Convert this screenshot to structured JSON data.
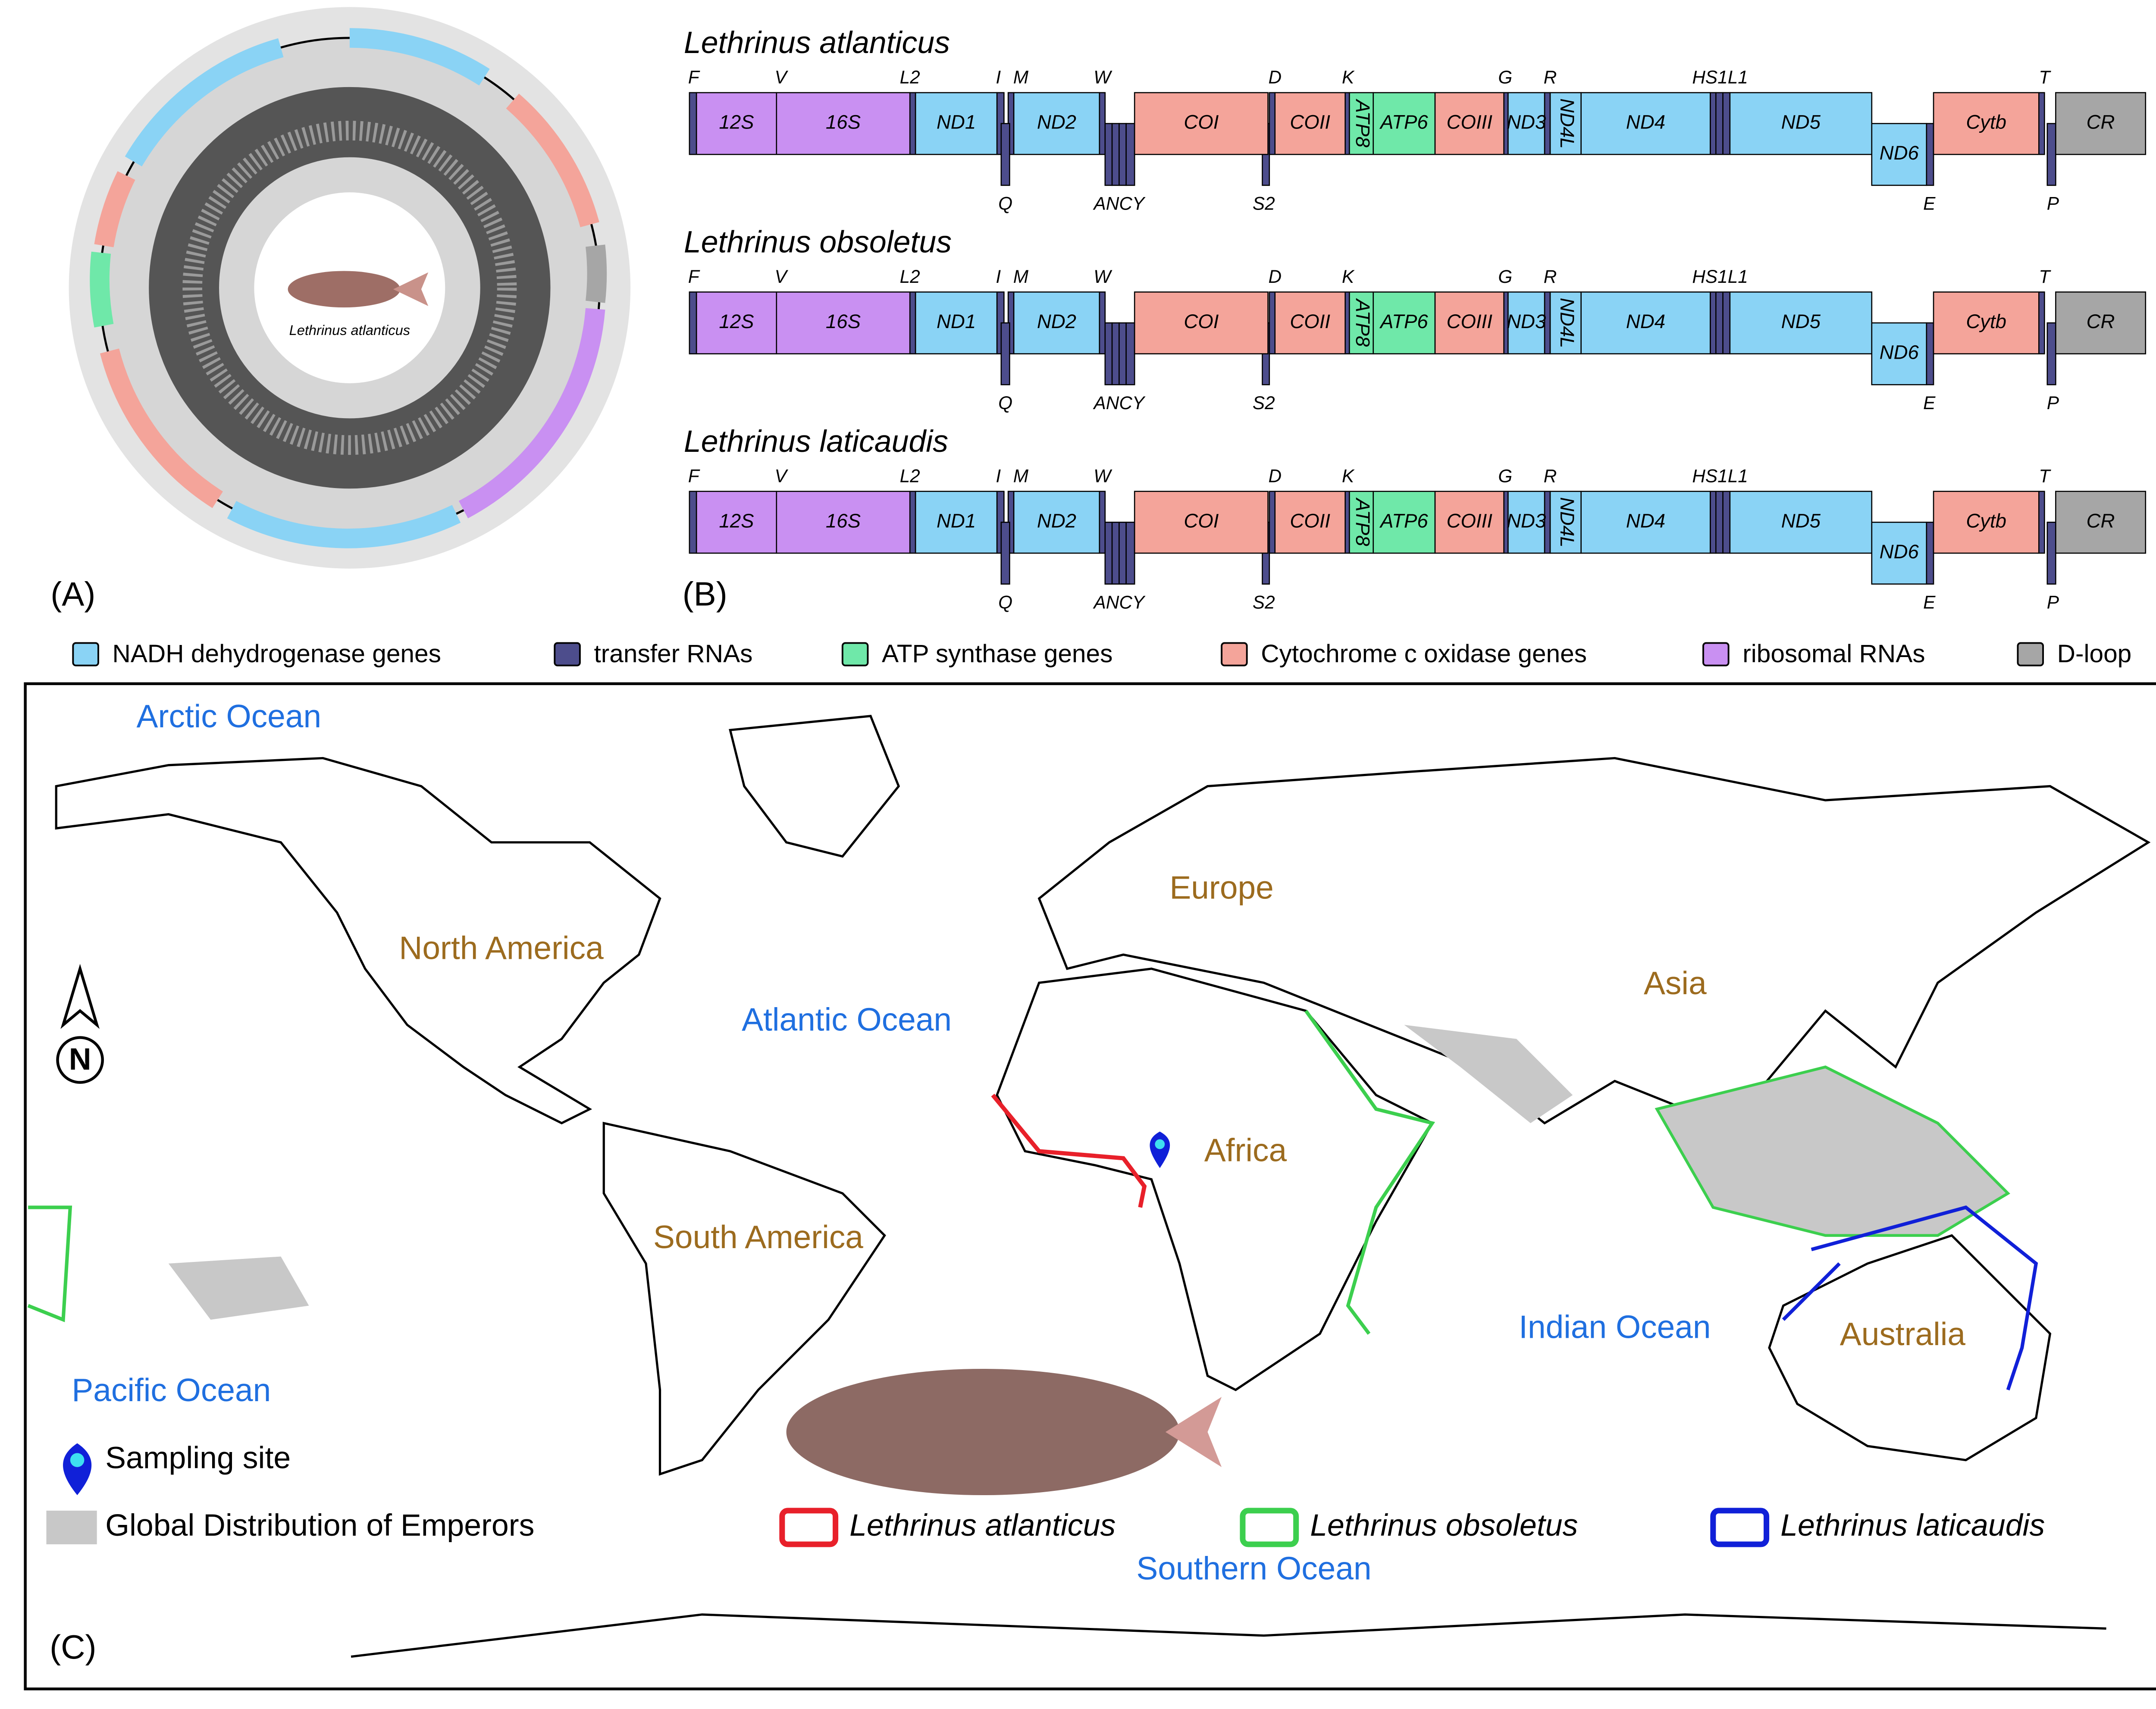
{
  "panel_labels": [
    "(A)",
    "(B)",
    "(C)"
  ],
  "genome_circle": {
    "center_label": "Lethrinus atlanticus"
  },
  "gene_maps": [
    {
      "species": "Lethrinus atlanticus",
      "genes": [
        {
          "label": "12S",
          "color": "#c990f2"
        },
        {
          "label": "16S",
          "color": "#c990f2"
        },
        {
          "label": "ND1",
          "color": "#8ad3f5"
        },
        {
          "label": "ND2",
          "color": "#8ad3f5"
        },
        {
          "label": "COI",
          "color": "#f4a49a"
        },
        {
          "label": "COII",
          "color": "#f4a49a"
        },
        {
          "label": "ATP8",
          "color": "#6fe8a9"
        },
        {
          "label": "ATP6",
          "color": "#6fe8a9"
        },
        {
          "label": "COIII",
          "color": "#f4a49a"
        },
        {
          "label": "ND3",
          "color": "#8ad3f5"
        },
        {
          "label": "ND4L",
          "color": "#8ad3f5"
        },
        {
          "label": "ND4",
          "color": "#8ad3f5"
        },
        {
          "label": "ND5",
          "color": "#8ad3f5"
        },
        {
          "label": "ND6",
          "color": "#8ad3f5"
        },
        {
          "label": "Cytb",
          "color": "#f4a49a"
        },
        {
          "label": "CR",
          "color": "#a6a6a6"
        }
      ],
      "trna_top": [
        "F",
        "V",
        "L2",
        "I",
        "M",
        "W",
        "D",
        "K",
        "G",
        "R",
        "HS1L1",
        "T"
      ],
      "trna_bottom": [
        "Q",
        "ANCY",
        "S2",
        "E",
        "P"
      ]
    },
    {
      "species": "Lethrinus obsoletus",
      "genes": [
        {
          "label": "12S",
          "color": "#c990f2"
        },
        {
          "label": "16S",
          "color": "#c990f2"
        },
        {
          "label": "ND1",
          "color": "#8ad3f5"
        },
        {
          "label": "ND2",
          "color": "#8ad3f5"
        },
        {
          "label": "COI",
          "color": "#f4a49a"
        },
        {
          "label": "COII",
          "color": "#f4a49a"
        },
        {
          "label": "ATP8",
          "color": "#6fe8a9"
        },
        {
          "label": "ATP6",
          "color": "#6fe8a9"
        },
        {
          "label": "COIII",
          "color": "#f4a49a"
        },
        {
          "label": "ND3",
          "color": "#8ad3f5"
        },
        {
          "label": "ND4L",
          "color": "#8ad3f5"
        },
        {
          "label": "ND4",
          "color": "#8ad3f5"
        },
        {
          "label": "ND5",
          "color": "#8ad3f5"
        },
        {
          "label": "ND6",
          "color": "#8ad3f5"
        },
        {
          "label": "Cytb",
          "color": "#f4a49a"
        },
        {
          "label": "CR",
          "color": "#a6a6a6"
        }
      ],
      "trna_top": [
        "F",
        "V",
        "L2",
        "I",
        "M",
        "W",
        "D",
        "K",
        "G",
        "R",
        "HS1L1",
        "T"
      ],
      "trna_bottom": [
        "Q",
        "ANCY",
        "S2",
        "E",
        "P"
      ]
    },
    {
      "species": "Lethrinus laticaudis",
      "genes": [
        {
          "label": "12S",
          "color": "#c990f2"
        },
        {
          "label": "16S",
          "color": "#c990f2"
        },
        {
          "label": "ND1",
          "color": "#8ad3f5"
        },
        {
          "label": "ND2",
          "color": "#8ad3f5"
        },
        {
          "label": "COI",
          "color": "#f4a49a"
        },
        {
          "label": "COII",
          "color": "#f4a49a"
        },
        {
          "label": "ATP8",
          "color": "#6fe8a9"
        },
        {
          "label": "ATP6",
          "color": "#6fe8a9"
        },
        {
          "label": "COIII",
          "color": "#f4a49a"
        },
        {
          "label": "ND3",
          "color": "#8ad3f5"
        },
        {
          "label": "ND4L",
          "color": "#8ad3f5"
        },
        {
          "label": "ND4",
          "color": "#8ad3f5"
        },
        {
          "label": "ND5",
          "color": "#8ad3f5"
        },
        {
          "label": "ND6",
          "color": "#8ad3f5"
        },
        {
          "label": "Cytb",
          "color": "#f4a49a"
        },
        {
          "label": "CR",
          "color": "#a6a6a6"
        }
      ],
      "trna_top": [
        "F",
        "V",
        "L2",
        "I",
        "M",
        "W",
        "D",
        "K",
        "G",
        "R",
        "HS1L1",
        "T"
      ],
      "trna_bottom": [
        "Q",
        "ANCY",
        "S2",
        "E",
        "P"
      ]
    }
  ],
  "legend": [
    {
      "label": "NADH dehydrogenase genes",
      "color": "#8ad3f5"
    },
    {
      "label": "transfer RNAs",
      "color": "#4d4d8c"
    },
    {
      "label": "ATP synthase genes",
      "color": "#6fe8a9"
    },
    {
      "label": "Cytochrome c oxidase genes",
      "color": "#f4a49a"
    },
    {
      "label": "ribosomal RNAs",
      "color": "#c990f2"
    },
    {
      "label": "D-loop",
      "color": "#a6a6a6"
    }
  ],
  "map": {
    "labels": [
      {
        "text": "Arctic Ocean",
        "color": "#1f6fe0"
      },
      {
        "text": "North America",
        "color": "#9c6b1e"
      },
      {
        "text": "Europe",
        "color": "#9c6b1e"
      },
      {
        "text": "Atlantic Ocean",
        "color": "#1f6fe0"
      },
      {
        "text": "Asia",
        "color": "#9c6b1e"
      },
      {
        "text": "Africa",
        "color": "#9c6b1e"
      },
      {
        "text": "South America",
        "color": "#9c6b1e"
      },
      {
        "text": "Indian Ocean",
        "color": "#1f6fe0"
      },
      {
        "text": "Australia",
        "color": "#9c6b1e"
      },
      {
        "text": "Pacific Ocean",
        "color": "#1f6fe0"
      },
      {
        "text": "Southern Ocean",
        "color": "#1f6fe0"
      }
    ],
    "compass": "N",
    "legend": {
      "sampling_site": "Sampling site",
      "global_distribution": "Global Distribution of Emperors",
      "species": [
        {
          "name": "Lethrinus atlanticus",
          "color": "#e8202a"
        },
        {
          "name": "Lethrinus obsoletus",
          "color": "#3ccf4e"
        },
        {
          "name": "Lethrinus laticaudis",
          "color": "#1020d8"
        }
      ]
    }
  }
}
